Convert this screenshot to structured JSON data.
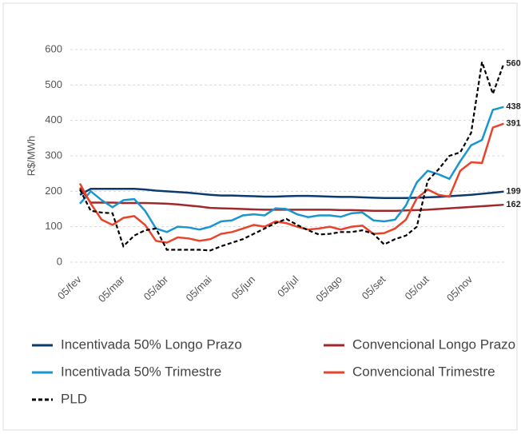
{
  "chart_data": {
    "type": "line",
    "y_label": "R$/MWh",
    "categories": [
      "05/fev",
      null,
      null,
      null,
      "05/mar",
      null,
      null,
      null,
      "05/abr",
      null,
      null,
      null,
      "05/mai",
      null,
      null,
      null,
      "05/jun",
      null,
      null,
      null,
      "05/jul",
      null,
      null,
      null,
      "05/ago",
      null,
      null,
      null,
      "05/set",
      null,
      null,
      null,
      "05/out",
      null,
      null,
      null,
      "05/nov",
      null,
      null,
      null
    ],
    "ylim": [
      0,
      620
    ],
    "yticks": [
      0,
      100,
      200,
      300,
      400,
      500,
      600
    ],
    "grid": true,
    "series": [
      {
        "name": "Incentivada 50% Longo Prazo",
        "color": "#0d3a6e",
        "line_style": "solid",
        "values": [
          190,
          207,
          207,
          207,
          207,
          207,
          205,
          202,
          200,
          198,
          196,
          193,
          190,
          188,
          188,
          187,
          186,
          185,
          185,
          186,
          187,
          187,
          186,
          185,
          184,
          184,
          183,
          182,
          181,
          181,
          181,
          182,
          183,
          184,
          186,
          188,
          190,
          193,
          196,
          199
        ],
        "end_label": "199"
      },
      {
        "name": "Convencional Longo Prazo",
        "color": "#a0282a",
        "line_style": "solid",
        "values": [
          210,
          168,
          168,
          168,
          167,
          167,
          167,
          166,
          165,
          163,
          160,
          157,
          153,
          152,
          151,
          150,
          149,
          148,
          148,
          148,
          148,
          148,
          148,
          148,
          147,
          147,
          146,
          145,
          145,
          145,
          146,
          147,
          148,
          150,
          152,
          154,
          156,
          158,
          160,
          162
        ],
        "end_label": "162"
      },
      {
        "name": "Incentivada 50% Trimestre",
        "color": "#1a96cf",
        "line_style": "solid",
        "values": [
          165,
          200,
          175,
          155,
          175,
          178,
          145,
          95,
          85,
          100,
          98,
          92,
          100,
          115,
          118,
          132,
          135,
          132,
          152,
          150,
          135,
          127,
          132,
          132,
          128,
          138,
          140,
          118,
          115,
          120,
          160,
          225,
          258,
          248,
          235,
          285,
          330,
          345,
          430,
          438
        ],
        "end_label": "438"
      },
      {
        "name": "Convencional Trimestre",
        "color": "#e8442b",
        "line_style": "solid",
        "values": [
          222,
          165,
          120,
          105,
          125,
          130,
          105,
          60,
          55,
          70,
          67,
          60,
          65,
          80,
          85,
          95,
          105,
          100,
          115,
          110,
          100,
          92,
          95,
          100,
          92,
          100,
          103,
          80,
          82,
          95,
          120,
          180,
          205,
          190,
          185,
          258,
          282,
          280,
          380,
          391
        ],
        "end_label": "391"
      },
      {
        "name": "PLD",
        "color": "#000000",
        "line_style": "dashed",
        "values": [
          205,
          145,
          140,
          138,
          45,
          75,
          90,
          95,
          35,
          35,
          35,
          35,
          33,
          45,
          55,
          65,
          80,
          95,
          110,
          122,
          105,
          90,
          78,
          80,
          85,
          85,
          90,
          80,
          50,
          65,
          75,
          100,
          230,
          262,
          300,
          310,
          365,
          565,
          475,
          560
        ],
        "end_label": "560"
      }
    ]
  }
}
